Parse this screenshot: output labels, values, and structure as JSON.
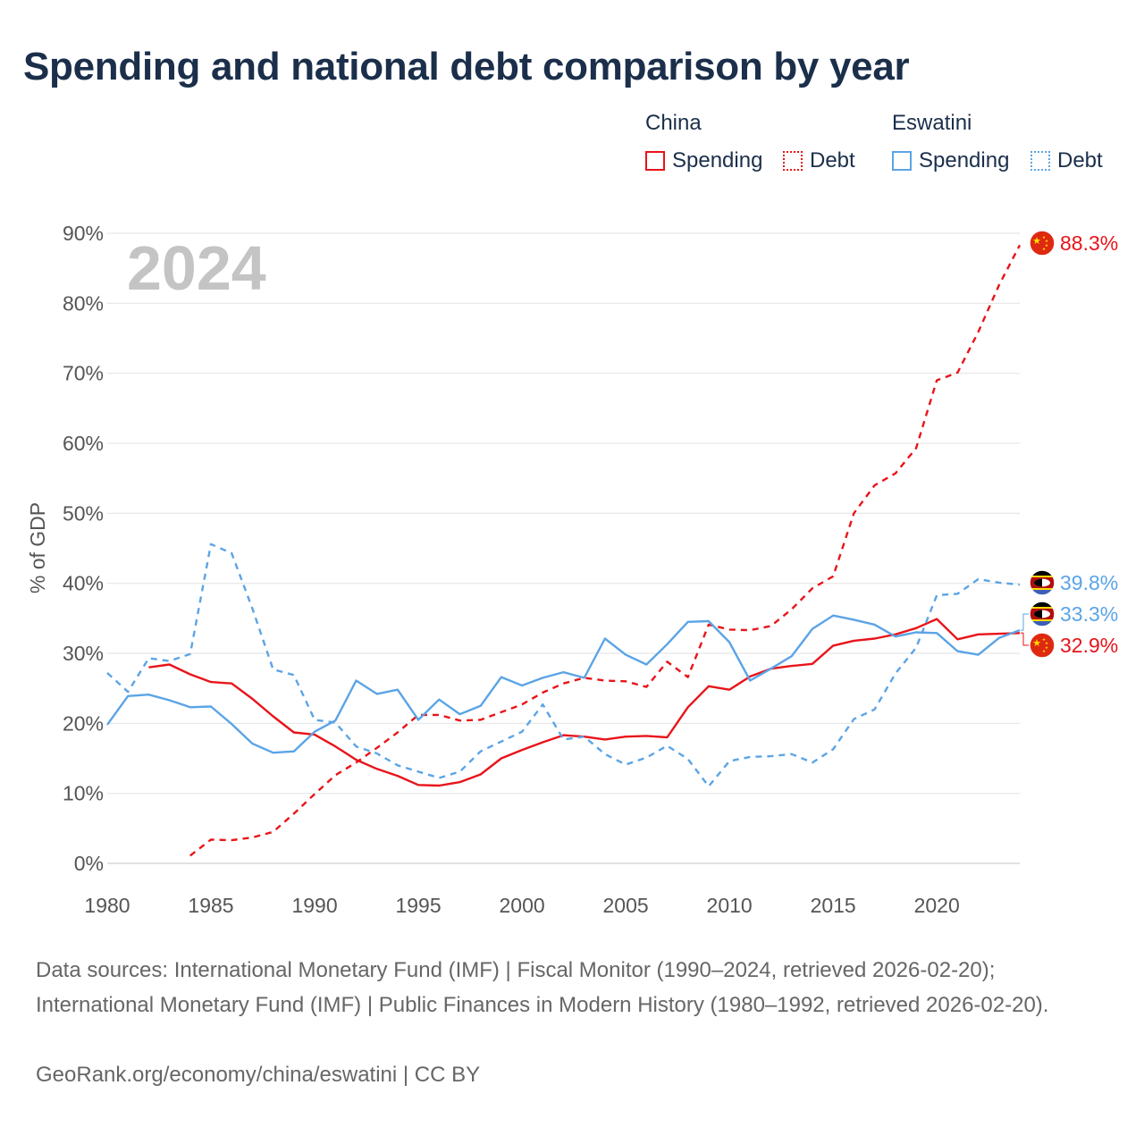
{
  "title": "Spending and national debt comparison by year",
  "legend": {
    "groups": [
      {
        "country": "China",
        "color": "#e8141a",
        "items": [
          {
            "label": "Spending",
            "style": "solid"
          },
          {
            "label": "Debt",
            "style": "dotted"
          }
        ]
      },
      {
        "country": "Eswatini",
        "color": "#5ba4e6",
        "items": [
          {
            "label": "Spending",
            "style": "solid"
          },
          {
            "label": "Debt",
            "style": "dotted"
          }
        ]
      }
    ]
  },
  "chart_data": {
    "type": "line",
    "year_label": "2024",
    "ylabel": "% of GDP",
    "xlabel": "",
    "xlim": [
      1980,
      2024
    ],
    "ylim": [
      0,
      90
    ],
    "yticks": [
      "0%",
      "10%",
      "20%",
      "30%",
      "40%",
      "50%",
      "60%",
      "70%",
      "80%",
      "90%"
    ],
    "xticks": [
      "1980",
      "1985",
      "1990",
      "1995",
      "2000",
      "2005",
      "2010",
      "2015",
      "2020"
    ],
    "grid": true,
    "series": [
      {
        "name": "China Spending",
        "color": "#e8141a",
        "dash": false,
        "x": [
          1982,
          1983,
          1984,
          1985,
          1986,
          1987,
          1988,
          1989,
          1990,
          1991,
          1992,
          1993,
          1994,
          1995,
          1996,
          1997,
          1998,
          1999,
          2000,
          2001,
          2002,
          2003,
          2004,
          2005,
          2006,
          2007,
          2008,
          2009,
          2010,
          2011,
          2012,
          2013,
          2014,
          2015,
          2016,
          2017,
          2018,
          2019,
          2020,
          2021,
          2022,
          2023,
          2024
        ],
        "values": [
          28.0,
          28.4,
          27.0,
          25.9,
          25.7,
          23.5,
          21.0,
          18.7,
          18.4,
          16.7,
          14.8,
          13.5,
          12.5,
          11.2,
          11.1,
          11.6,
          12.7,
          15.0,
          16.2,
          17.3,
          18.3,
          18.1,
          17.7,
          18.1,
          18.2,
          18.0,
          22.3,
          25.3,
          24.8,
          26.7,
          27.8,
          28.2,
          28.5,
          31.1,
          31.8,
          32.1,
          32.7,
          33.6,
          34.9,
          32.0,
          32.7,
          32.8,
          32.9
        ]
      },
      {
        "name": "China Debt",
        "color": "#e8141a",
        "dash": true,
        "x": [
          1984,
          1985,
          1986,
          1987,
          1988,
          1989,
          1990,
          1991,
          1992,
          1993,
          1994,
          1995,
          1996,
          1997,
          1998,
          1999,
          2000,
          2001,
          2002,
          2003,
          2004,
          2005,
          2006,
          2007,
          2008,
          2009,
          2010,
          2011,
          2012,
          2013,
          2014,
          2015,
          2016,
          2017,
          2018,
          2019,
          2020,
          2021,
          2022,
          2023,
          2024
        ],
        "values": [
          1.1,
          3.4,
          3.3,
          3.7,
          4.5,
          7.1,
          9.9,
          12.6,
          14.4,
          16.5,
          18.7,
          21.2,
          21.2,
          20.4,
          20.5,
          21.6,
          22.7,
          24.4,
          25.7,
          26.5,
          26.1,
          26.0,
          25.2,
          28.8,
          26.6,
          34.1,
          33.4,
          33.3,
          33.9,
          36.3,
          39.3,
          41.0,
          50.0,
          54.0,
          55.7,
          59.3,
          69.0,
          70.1,
          75.9,
          82.6,
          88.3
        ]
      },
      {
        "name": "Eswatini Spending",
        "color": "#5ba4e6",
        "dash": false,
        "x": [
          1980,
          1981,
          1982,
          1983,
          1984,
          1985,
          1986,
          1987,
          1988,
          1989,
          1990,
          1991,
          1992,
          1993,
          1994,
          1995,
          1996,
          1997,
          1998,
          1999,
          2000,
          2001,
          2002,
          2003,
          2004,
          2005,
          2006,
          2007,
          2008,
          2009,
          2010,
          2011,
          2012,
          2013,
          2014,
          2015,
          2016,
          2017,
          2018,
          2019,
          2020,
          2021,
          2022,
          2023,
          2024
        ],
        "values": [
          19.8,
          23.9,
          24.1,
          23.3,
          22.3,
          22.4,
          19.9,
          17.1,
          15.8,
          16.0,
          18.8,
          20.4,
          26.1,
          24.2,
          24.8,
          20.5,
          23.4,
          21.3,
          22.5,
          26.6,
          25.4,
          26.5,
          27.3,
          26.5,
          32.1,
          29.8,
          28.4,
          31.3,
          34.5,
          34.6,
          31.6,
          26.1,
          27.8,
          29.6,
          33.5,
          35.4,
          34.8,
          34.1,
          32.4,
          33.0,
          32.9,
          30.3,
          29.8,
          32.2,
          33.3
        ]
      },
      {
        "name": "Eswatini Debt",
        "color": "#5ba4e6",
        "dash": true,
        "x": [
          1980,
          1981,
          1982,
          1983,
          1984,
          1985,
          1986,
          1987,
          1988,
          1989,
          1990,
          1991,
          1992,
          1993,
          1994,
          1995,
          1996,
          1997,
          1998,
          1999,
          2000,
          2001,
          2002,
          2003,
          2004,
          2005,
          2006,
          2007,
          2008,
          2009,
          2010,
          2011,
          2012,
          2013,
          2014,
          2015,
          2016,
          2017,
          2018,
          2019,
          2020,
          2021,
          2022,
          2023,
          2024
        ],
        "values": [
          27.2,
          24.5,
          29.3,
          28.9,
          29.9,
          45.6,
          44.3,
          36.4,
          27.7,
          26.9,
          20.5,
          20.1,
          16.7,
          15.7,
          14.0,
          13.1,
          12.2,
          13.1,
          16.0,
          17.4,
          18.8,
          22.7,
          17.7,
          18.1,
          15.6,
          14.1,
          15.1,
          16.8,
          14.9,
          11.0,
          14.6,
          15.2,
          15.3,
          15.6,
          14.4,
          16.3,
          20.6,
          22.0,
          27.1,
          30.8,
          38.3,
          38.5,
          40.6,
          40.1,
          39.8
        ]
      }
    ],
    "end_labels": [
      {
        "series": "China Debt",
        "text": "88.3%",
        "country": "China",
        "color": "#e8141a"
      },
      {
        "series": "Eswatini Debt",
        "text": "39.8%",
        "country": "Eswatini",
        "color": "#5ba4e6"
      },
      {
        "series": "Eswatini Spending",
        "text": "33.3%",
        "country": "Eswatini",
        "color": "#5ba4e6"
      },
      {
        "series": "China Spending",
        "text": "32.9%",
        "country": "China",
        "color": "#e8141a"
      }
    ]
  },
  "footer": {
    "sources": "Data sources: International Monetary Fund (IMF) | Fiscal Monitor (1990–2024, retrieved 2026-02-20); International Monetary Fund (IMF) | Public Finances in Modern History (1980–1992, retrieved 2026-02-20).",
    "attribution": "GeoRank.org/economy/china/eswatini | CC BY"
  }
}
